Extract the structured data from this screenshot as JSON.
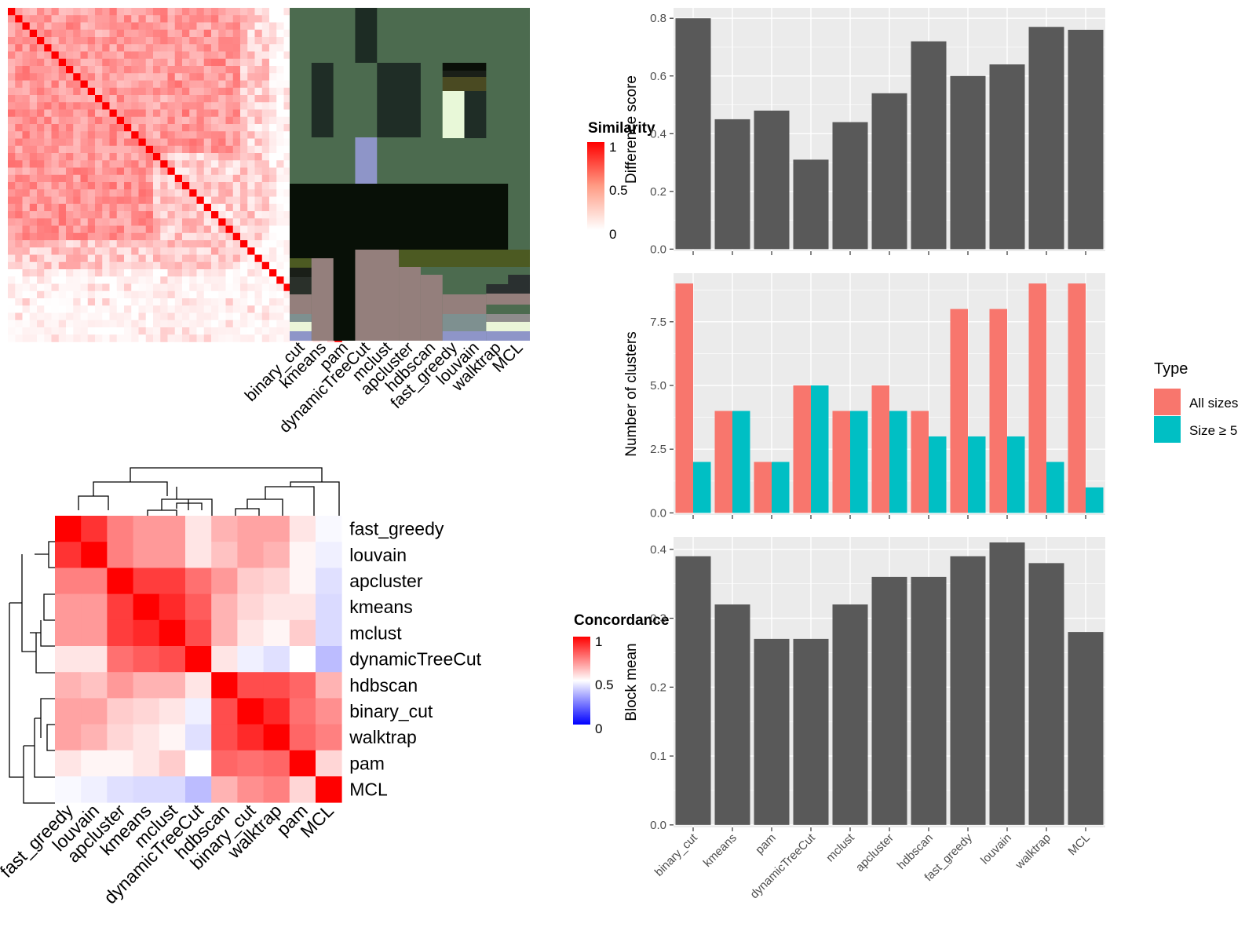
{
  "colors": {
    "panel_bg": "#ebebeb",
    "bar_grey": "#595959",
    "all_sizes": "#f8766d",
    "size_ge5": "#00bfc4",
    "heat_high": "#ff0000",
    "heat_low": "#ffffff",
    "conc_low": "#0000ff",
    "module_green": "#4c6b4f",
    "module_dark": "#081007"
  },
  "methods": [
    "binary_cut",
    "kmeans",
    "pam",
    "dynamicTreeCut",
    "mclust",
    "apcluster",
    "hdbscan",
    "fast_greedy",
    "louvain",
    "walktrap",
    "MCL"
  ],
  "similarity_legend": {
    "title": "Similarity",
    "ticks": [
      "1",
      "0.5",
      "0"
    ]
  },
  "concordance_legend": {
    "title": "Concordance",
    "ticks": [
      "1",
      "0.5",
      "0"
    ]
  },
  "type_legend": {
    "title": "Type",
    "entries": [
      "All sizes",
      "Size ≥ 5"
    ]
  },
  "concordance_order": [
    "fast_greedy",
    "louvain",
    "apcluster",
    "kmeans",
    "mclust",
    "dynamicTreeCut",
    "hdbscan",
    "binary_cut",
    "walktrap",
    "pam",
    "MCL"
  ],
  "concordance_matrix": [
    [
      1.0,
      0.9,
      0.75,
      0.7,
      0.7,
      0.55,
      0.65,
      0.68,
      0.68,
      0.55,
      0.48
    ],
    [
      0.9,
      1.0,
      0.75,
      0.7,
      0.7,
      0.55,
      0.62,
      0.68,
      0.65,
      0.52,
      0.45
    ],
    [
      0.75,
      0.75,
      1.0,
      0.88,
      0.88,
      0.78,
      0.7,
      0.6,
      0.58,
      0.52,
      0.4
    ],
    [
      0.7,
      0.7,
      0.88,
      1.0,
      0.92,
      0.82,
      0.65,
      0.58,
      0.55,
      0.55,
      0.38
    ],
    [
      0.7,
      0.7,
      0.88,
      0.92,
      1.0,
      0.85,
      0.65,
      0.55,
      0.52,
      0.6,
      0.38
    ],
    [
      0.55,
      0.55,
      0.78,
      0.82,
      0.85,
      1.0,
      0.55,
      0.45,
      0.4,
      0.5,
      0.28
    ],
    [
      0.65,
      0.62,
      0.7,
      0.65,
      0.65,
      0.55,
      1.0,
      0.85,
      0.85,
      0.8,
      0.65
    ],
    [
      0.68,
      0.68,
      0.6,
      0.58,
      0.55,
      0.45,
      0.85,
      1.0,
      0.92,
      0.78,
      0.72
    ],
    [
      0.68,
      0.65,
      0.58,
      0.55,
      0.52,
      0.4,
      0.85,
      0.92,
      1.0,
      0.8,
      0.75
    ],
    [
      0.55,
      0.52,
      0.52,
      0.55,
      0.6,
      0.5,
      0.8,
      0.78,
      0.8,
      1.0,
      0.58
    ],
    [
      0.48,
      0.45,
      0.4,
      0.38,
      0.38,
      0.28,
      0.65,
      0.72,
      0.75,
      0.58,
      1.0
    ]
  ],
  "chart_data": [
    {
      "type": "bar",
      "ylabel": "Difference score",
      "categories": [
        "binary_cut",
        "kmeans",
        "pam",
        "dynamicTreeCut",
        "mclust",
        "apcluster",
        "hdbscan",
        "fast_greedy",
        "louvain",
        "walktrap",
        "MCL"
      ],
      "values": [
        0.8,
        0.45,
        0.48,
        0.31,
        0.44,
        0.54,
        0.72,
        0.6,
        0.64,
        0.77,
        0.76
      ],
      "ylim": [
        0,
        0.8
      ],
      "yticks": [
        "0.0",
        "0.2",
        "0.4",
        "0.6",
        "0.8"
      ]
    },
    {
      "type": "bar",
      "ylabel": "Number of clusters",
      "categories": [
        "binary_cut",
        "kmeans",
        "pam",
        "dynamicTreeCut",
        "mclust",
        "apcluster",
        "hdbscan",
        "fast_greedy",
        "louvain",
        "walktrap",
        "MCL"
      ],
      "series": [
        {
          "name": "All sizes",
          "values": [
            9,
            4,
            2,
            5,
            4,
            5,
            4,
            8,
            8,
            9,
            9
          ]
        },
        {
          "name": "Size ≥ 5",
          "values": [
            2,
            4,
            2,
            5,
            4,
            4,
            3,
            3,
            3,
            2,
            1
          ]
        }
      ],
      "ylim": [
        0,
        9
      ],
      "yticks": [
        "0.0",
        "2.5",
        "5.0",
        "7.5"
      ]
    },
    {
      "type": "bar",
      "ylabel": "Block mean",
      "categories": [
        "binary_cut",
        "kmeans",
        "pam",
        "dynamicTreeCut",
        "mclust",
        "apcluster",
        "hdbscan",
        "fast_greedy",
        "louvain",
        "walktrap",
        "MCL"
      ],
      "values": [
        0.39,
        0.32,
        0.27,
        0.27,
        0.32,
        0.36,
        0.36,
        0.39,
        0.41,
        0.38,
        0.28
      ],
      "ylim": [
        0,
        0.4
      ],
      "yticks": [
        "0.0",
        "0.1",
        "0.2",
        "0.3",
        "0.4"
      ]
    }
  ]
}
